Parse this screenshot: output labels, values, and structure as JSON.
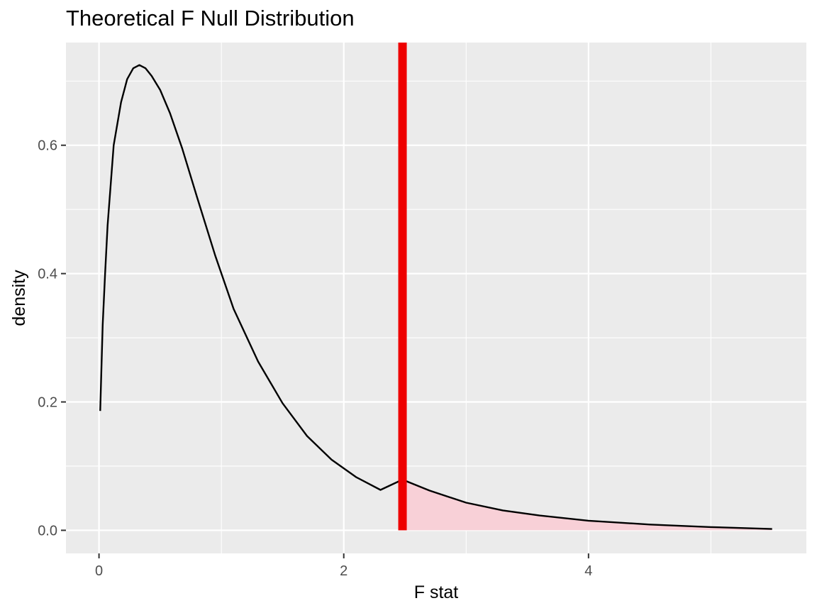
{
  "chart_data": {
    "type": "area",
    "title": "Theoretical F Null Distribution",
    "xlabel": "F stat",
    "ylabel": "density",
    "xlim": [
      -0.27,
      5.78
    ],
    "ylim": [
      -0.036,
      0.76
    ],
    "x_ticks": [
      0,
      2,
      4
    ],
    "x_tick_labels": [
      "0",
      "2",
      "4"
    ],
    "y_ticks": [
      0.0,
      0.2,
      0.4,
      0.6
    ],
    "y_tick_labels": [
      "0.0",
      "0.2",
      "0.4",
      "0.6"
    ],
    "grid": true,
    "panel_background": "#ebebeb",
    "grid_color": "#ffffff",
    "series": [
      {
        "style": "line",
        "color": "#000000",
        "x": [
          0.01,
          0.03,
          0.05,
          0.07,
          0.12,
          0.18,
          0.23,
          0.28,
          0.33,
          0.38,
          0.43,
          0.5,
          0.58,
          0.68,
          0.8,
          0.95,
          1.1,
          1.3,
          1.5,
          1.7,
          1.9,
          2.1,
          2.3,
          2.48,
          2.7,
          3.0,
          3.3,
          3.6,
          4.0,
          4.5,
          5.0,
          5.5
        ],
        "y": [
          0.186,
          0.32,
          0.4,
          0.475,
          0.6,
          0.667,
          0.703,
          0.72,
          0.725,
          0.72,
          0.708,
          0.686,
          0.65,
          0.595,
          0.52,
          0.428,
          0.345,
          0.263,
          0.198,
          0.147,
          0.11,
          0.083,
          0.063,
          0.079,
          0.062,
          0.043,
          0.031,
          0.023,
          0.015,
          0.009,
          0.005,
          0.002
        ]
      }
    ],
    "annotations": {
      "vline": {
        "x": 2.48,
        "color": "#ee0000"
      },
      "shaded_region": {
        "from_x": 2.48,
        "to_x": 5.5,
        "fill": "#f8d0d7"
      }
    }
  }
}
